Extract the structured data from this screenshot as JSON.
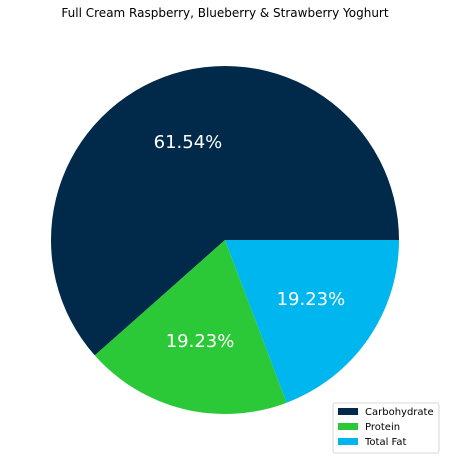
{
  "chart_data": {
    "type": "pie",
    "title": "Full Cream Raspberry, Blueberry & Strawberry Yoghurt",
    "categories": [
      "Carbohydrate",
      "Protein",
      "Total Fat"
    ],
    "values": [
      61.54,
      19.23,
      19.23
    ],
    "labels": [
      "61.54%",
      "19.23%",
      "19.23%"
    ],
    "colors": [
      "#00294A",
      "#2BC837",
      "#00B6EE"
    ],
    "start_angle_deg": 0,
    "direction": "counterclockwise",
    "legend_position": "lower-right"
  }
}
